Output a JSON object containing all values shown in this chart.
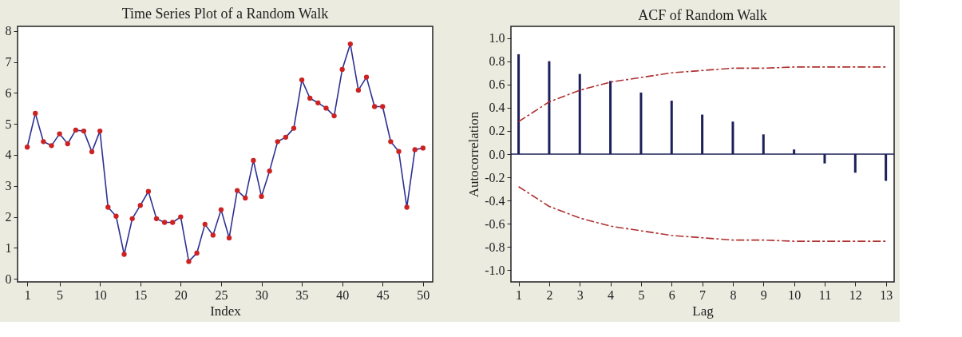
{
  "chart_data": [
    {
      "type": "line",
      "title": "Time Series Plot of a Random Walk",
      "xlabel": "Index",
      "x": [
        1,
        2,
        3,
        4,
        5,
        6,
        7,
        8,
        9,
        10,
        11,
        12,
        13,
        14,
        15,
        16,
        17,
        18,
        19,
        20,
        21,
        22,
        23,
        24,
        25,
        26,
        27,
        28,
        29,
        30,
        31,
        32,
        33,
        34,
        35,
        36,
        37,
        38,
        39,
        40,
        41,
        42,
        43,
        44,
        45,
        46,
        47,
        48,
        49,
        50
      ],
      "series": [
        {
          "color": "#2e3192",
          "marker": "circle",
          "values": [
            4.25,
            5.34,
            4.43,
            4.3,
            4.68,
            4.36,
            4.8,
            4.77,
            4.1,
            4.77,
            2.31,
            2.02,
            0.79,
            1.94,
            2.37,
            2.82,
            1.94,
            1.82,
            1.82,
            2.0,
            0.56,
            0.83,
            1.76,
            1.41,
            2.23,
            1.32,
            2.85,
            2.61,
            3.82,
            2.66,
            3.48,
            4.43,
            4.57,
            4.86,
            6.42,
            5.83,
            5.68,
            5.51,
            5.26,
            6.76,
            7.58,
            6.09,
            6.51,
            5.56,
            5.56,
            4.43,
            4.11,
            2.31,
            4.17,
            4.22
          ]
        }
      ],
      "xlim": [
        -0.2,
        51.2
      ],
      "xticks": [
        1,
        5,
        10,
        15,
        20,
        25,
        30,
        35,
        40,
        45,
        50
      ],
      "ylim": [
        -0.1,
        8.15
      ],
      "yticks": [
        0,
        1,
        2,
        3,
        4,
        5,
        6,
        7,
        8
      ],
      "grid": false
    },
    {
      "type": "bar",
      "title": "ACF of Random Walk",
      "xlabel": "Lag",
      "ylabel": "Autocorrelation",
      "x": [
        1,
        2,
        3,
        4,
        5,
        6,
        7,
        8,
        9,
        10,
        11,
        12,
        13
      ],
      "series": [
        {
          "type": "bar",
          "color": "#1c1f5a",
          "values": [
            0.86,
            0.8,
            0.69,
            0.63,
            0.53,
            0.46,
            0.34,
            0.28,
            0.17,
            0.04,
            -0.08,
            -0.16,
            -0.23
          ]
        },
        {
          "type": "line",
          "color": "#b03030",
          "line_style": "dashed",
          "values": [
            0.28,
            0.45,
            0.55,
            0.62,
            0.66,
            0.7,
            0.72,
            0.74,
            0.74,
            0.75,
            0.75,
            0.75,
            0.75
          ]
        },
        {
          "type": "line",
          "color": "#b03030",
          "line_style": "dashed",
          "values": [
            -0.28,
            -0.45,
            -0.55,
            -0.62,
            -0.66,
            -0.7,
            -0.72,
            -0.74,
            -0.74,
            -0.75,
            -0.75,
            -0.75,
            -0.75
          ]
        }
      ],
      "ref_lines": [
        {
          "axis": "y",
          "value": 0,
          "color": "#1c1f5a"
        }
      ],
      "xlim": [
        0.75,
        13.27
      ],
      "xticks": [
        1,
        2,
        3,
        4,
        5,
        6,
        7,
        8,
        9,
        10,
        11,
        12,
        13
      ],
      "ylim": [
        -1.1,
        1.1
      ],
      "yticks": [
        {
          "value": -1,
          "label": "-1.0"
        },
        {
          "value": -0.8,
          "label": "-0.8"
        },
        {
          "value": -0.6,
          "label": "-0.6"
        },
        {
          "value": -0.4,
          "label": "-0.4"
        },
        {
          "value": -0.2,
          "label": "-0.2"
        },
        {
          "value": 0,
          "label": "0.0"
        },
        {
          "value": 0.2,
          "label": "0.2"
        },
        {
          "value": 0.4,
          "label": "0.4"
        },
        {
          "value": 0.6,
          "label": "0.6"
        },
        {
          "value": 0.8,
          "label": "0.8"
        },
        {
          "value": 1,
          "label": "1.0"
        }
      ],
      "grid": false
    }
  ]
}
